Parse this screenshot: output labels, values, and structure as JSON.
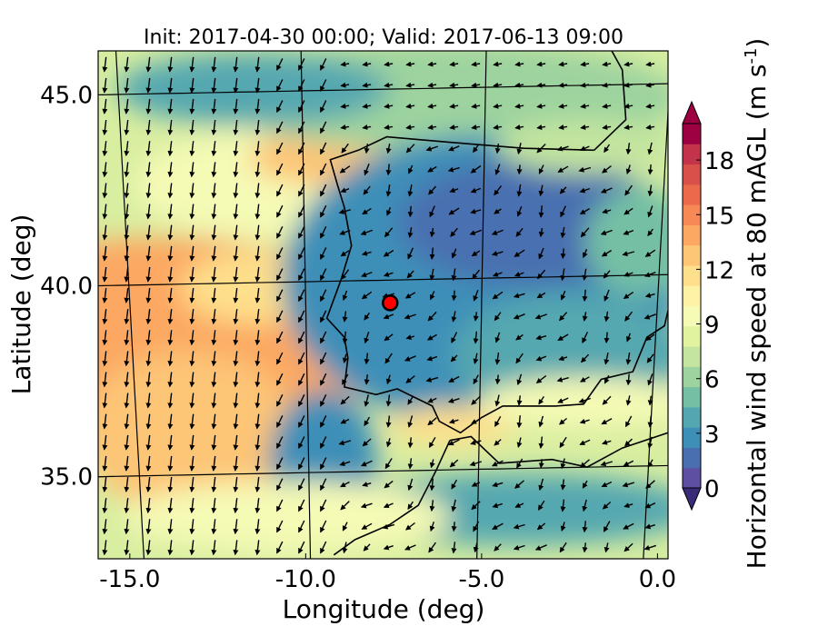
{
  "chart_data": {
    "type": "heatmap",
    "title": "Init: 2017-04-30 00:00; Valid: 2017-06-13 09:00",
    "xlabel": "Longitude (deg)",
    "ylabel": "Latitude (deg)",
    "xlim": [
      -15.9,
      0.3
    ],
    "ylim": [
      32.7,
      46.0
    ],
    "xticks": [
      -15.0,
      -10.0,
      -5.0,
      0.0
    ],
    "xtick_labels": [
      "-15.0",
      "-10.0",
      "-5.0",
      "0.0"
    ],
    "yticks": [
      35.0,
      40.0,
      45.0
    ],
    "ytick_labels": [
      "35.0",
      "40.0",
      "45.0"
    ],
    "colorbar": {
      "label": "Horizontal wind speed at 80 mAGL (m s$^{-1}$)",
      "label_main": "Horizontal wind speed at 80 mAGL (m s",
      "label_exp": "-1",
      "label_close": ")",
      "min": 0,
      "max": 20,
      "ticks": [
        0,
        3,
        6,
        9,
        12,
        15,
        18
      ],
      "tick_labels": [
        "0",
        "3",
        "6",
        "9",
        "12",
        "15",
        "18"
      ],
      "colormap": "Spectral_r",
      "colors": [
        "#5e4fa2",
        "#4a6fb0",
        "#3e8fb8",
        "#54a7b0",
        "#75c0a4",
        "#9dd39f",
        "#c3e59f",
        "#e1f39f",
        "#f5fab5",
        "#fef2a6",
        "#fedf8b",
        "#fdc576",
        "#fca862",
        "#f68955",
        "#ea6a4b",
        "#d9504a",
        "#c3344b",
        "#9e0142"
      ],
      "extend": "both"
    },
    "marker": {
      "lon": -7.6,
      "lat": 39.4,
      "color": "#ff0000"
    },
    "wind_field": {
      "representation": "quiver arrows on a regular grid",
      "description_of_flow": "strong northerly to north-north-easterly flow over the Atlantic (about 12-15 m/s west of -12 deg longitude); weaker, variable winds (0-6 m/s) over the Iberian interior; local maxima near Cape Finisterre (about 13 m/s) and the Strait of Gibraltar"
    },
    "grid": true,
    "regions": {
      "atlantic_west_max_ms": 14,
      "iberia_interior_typical_ms": 3,
      "cape_finisterre_max_ms": 13,
      "gibraltar_max_ms": 12,
      "bay_of_biscay_typical_ms": 6
    }
  }
}
